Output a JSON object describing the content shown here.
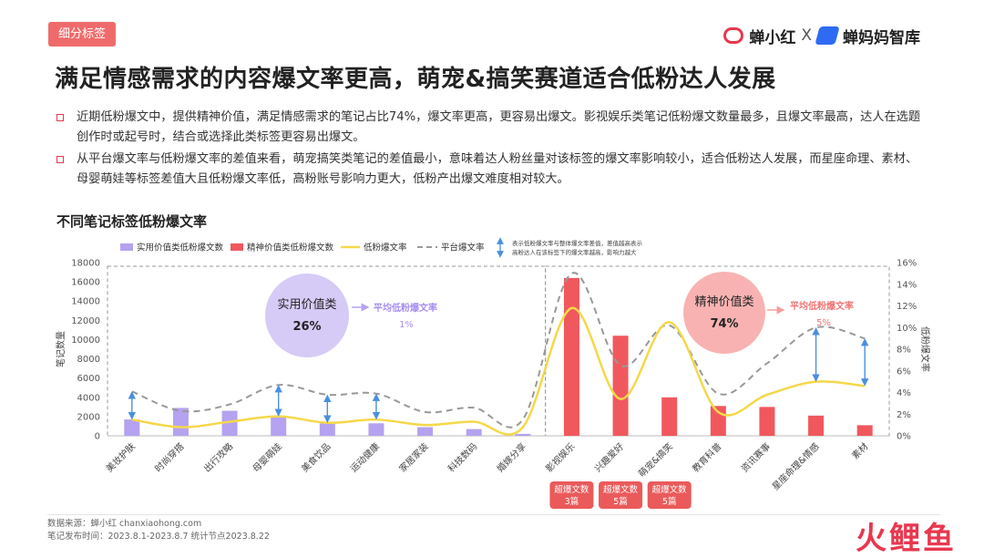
{
  "header": {
    "tag": "细分标签",
    "logo_left": "蝉小红",
    "logo_x": "X",
    "logo_right": "蝉妈妈智库"
  },
  "title": "满足情感需求的内容爆文率更高，萌宠&搞笑赛道适合低粉达人发展",
  "bullets": [
    "近期低粉爆文中，提供精神价值，满足情感需求的笔记占比74%，爆文率更高，更容易出爆文。影视娱乐类笔记低粉爆文数量最多，且爆文率最高，达人在选题创作时或起号时，结合或选择此类标签更容易出爆文。",
    "从平台爆文率与低粉爆文率的差值来看，萌宠搞笑类笔记的差值最小，意味着达人粉丝量对该标签的爆文率影响较小，适合低粉达人发展，而星座命理、素材、母婴萌娃等标签差值大且低粉爆文率低，高粉账号影响力更大，低粉产出爆文难度相对较大。"
  ],
  "chart_title": "不同笔记标签低粉爆文率",
  "legend": {
    "practical": "实用价值类低粉爆文数",
    "spiritual": "精神价值类低粉爆文数",
    "low_rate": "低粉爆文率",
    "platform_rate": "平台爆文率",
    "arrow_note_1": "表示低粉爆文率与整体爆文率差值，差值越高表示",
    "arrow_note_2": "高粉达人在该标签下的爆文率越高，影响力越大"
  },
  "groups": {
    "practical_label": "实用价值类",
    "practical_pct": "26%",
    "practical_avg_label": "平均低粉爆文率",
    "practical_avg": "1%",
    "spiritual_label": "精神价值类",
    "spiritual_pct": "74%",
    "spiritual_avg_label": "平均低粉爆文率",
    "spiritual_avg": "5%"
  },
  "callouts": [
    {
      "line1": "超爆文数",
      "line2": "3篇"
    },
    {
      "line1": "超爆文数",
      "line2": "5篇"
    },
    {
      "line1": "超爆文数",
      "line2": "5篇"
    }
  ],
  "colors": {
    "accent": "#e8384f",
    "practical_bar": "#b5a2f0",
    "spiritual_bar": "#f0585e",
    "low_rate_line": "#f5d84a",
    "platform_line": "#999999",
    "diff_arrow": "#4a8fe0"
  },
  "chart_data": {
    "type": "bar",
    "categories": [
      "美妆护肤",
      "时尚穿搭",
      "出行攻略",
      "母婴萌娃",
      "美食饮品",
      "运动健康",
      "家居家装",
      "科技数码",
      "婚嫁分享",
      "影视娱乐",
      "兴趣爱好",
      "萌宠&搞笑",
      "教育科普",
      "资讯赛事",
      "星座命理&情感",
      "素材"
    ],
    "ylabel": "笔记数量",
    "y2label": "低粉爆文率",
    "ylim": [
      0,
      18000
    ],
    "yticks": [
      0,
      2000,
      4000,
      6000,
      8000,
      10000,
      12000,
      14000,
      16000,
      18000
    ],
    "y2lim": [
      0,
      16
    ],
    "y2ticks": [
      "0%",
      "2%",
      "4%",
      "6%",
      "8%",
      "10%",
      "12%",
      "14%",
      "16%"
    ],
    "series": [
      {
        "name": "实用价值类低粉爆文数",
        "values": [
          1700,
          2900,
          2600,
          1900,
          1300,
          1300,
          900,
          700,
          200,
          null,
          null,
          null,
          null,
          null,
          null,
          null
        ]
      },
      {
        "name": "精神价值类低粉爆文数",
        "values": [
          null,
          null,
          null,
          null,
          null,
          null,
          null,
          null,
          null,
          16400,
          10400,
          4000,
          3100,
          3000,
          2100,
          1100
        ]
      },
      {
        "name": "低粉爆文率",
        "values": [
          1.5,
          0.8,
          1.3,
          1.8,
          1.2,
          1.5,
          1.0,
          1.3,
          0.8,
          11.8,
          3.4,
          10.5,
          2.2,
          3.8,
          5.0,
          4.6
        ]
      },
      {
        "name": "平台爆文率",
        "values": [
          4.1,
          2.3,
          2.9,
          4.7,
          3.8,
          3.9,
          2.2,
          2.6,
          1.5,
          15.0,
          6.5,
          10.2,
          3.9,
          6.7,
          10.0,
          9.0
        ]
      }
    ],
    "diff_arrow_categories": [
      "美妆护肤",
      "母婴萌娃",
      "美食饮品",
      "运动健康",
      "星座命理&情感",
      "素材"
    ],
    "callout_categories": [
      "影视娱乐",
      "兴趣爱好",
      "萌宠&搞笑"
    ]
  },
  "footer": {
    "source": "数据来源：蝉小红 chanxiaohong.com",
    "period": "笔记发布时间：2023.8.1-2023.8.7 统计节点2023.8.22"
  },
  "watermark": "火鲤鱼"
}
